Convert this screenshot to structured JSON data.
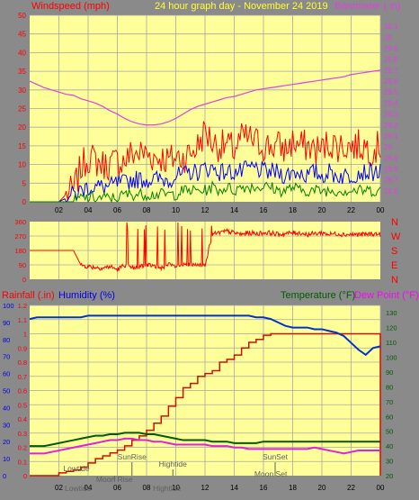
{
  "colors": {
    "background": "#8a8a8a",
    "plot_bg": "#ffff99",
    "grid": "#a6a6a6",
    "wind": "#ff0000",
    "gust": "#0000ff",
    "avg": "#008000",
    "baro": "#e040e0",
    "rain": "#cc1100",
    "humidity": "#0033cc",
    "temperature": "#005c00",
    "dewpoint": "#e020e0",
    "label_yellow": "#ffff33",
    "tide_text": "#606060"
  },
  "chart_data": [
    {
      "type": "line",
      "title": "24 hour graph day - November 24 2019",
      "ylabel_left": "Windspeed (mph)",
      "ylabel_right": "Barometer (.in)",
      "x_tick_labels": [
        "02",
        "04",
        "06",
        "08",
        "10",
        "12",
        "14",
        "16",
        "18",
        "20",
        "22",
        "00"
      ],
      "x_hour_range": [
        0,
        24
      ],
      "ylim_left": [
        0,
        50
      ],
      "y_ticks_left": [
        "0",
        "5",
        "10",
        "15",
        "20",
        "25",
        "30",
        "35",
        "40",
        "45",
        "50"
      ],
      "ylim_right": [
        28.5,
        30.2
      ],
      "y_ticks_right": [
        "28.6",
        "28.7",
        "28.8",
        "28.9",
        "29",
        "29.1",
        "29.2",
        "29.3",
        "29.4",
        "29.5",
        "29.6",
        "29.7",
        "29.8",
        "29.9",
        "30",
        "30.1"
      ],
      "grid": true,
      "series": [
        {
          "key": "wind_high",
          "values": [
            0,
            0,
            0,
            0,
            0,
            2,
            3,
            9,
            12,
            11,
            10,
            10,
            11,
            11,
            13,
            13,
            13,
            12,
            12,
            11,
            12,
            12,
            13,
            15,
            19,
            16,
            15,
            15,
            14,
            17,
            17,
            16,
            15,
            15,
            15,
            14,
            16,
            15,
            15,
            14,
            14,
            16,
            15,
            15,
            15,
            15,
            15,
            14,
            15
          ]
        },
        {
          "key": "wind_mid",
          "values": [
            0,
            0,
            0,
            0,
            0,
            1,
            2,
            3,
            4,
            4,
            4,
            4,
            5,
            5,
            6,
            6,
            6,
            6,
            6,
            6,
            7,
            7,
            8,
            8,
            9,
            9,
            8,
            8,
            8,
            8,
            9,
            9,
            8,
            8,
            8,
            7,
            8,
            8,
            7,
            8,
            7,
            8,
            7,
            7,
            7,
            8,
            8,
            8,
            8
          ]
        },
        {
          "key": "wind_low",
          "values": [
            0,
            0,
            0,
            0,
            0,
            0,
            0,
            1,
            1,
            1,
            1,
            1,
            1,
            2,
            2,
            2,
            2,
            2,
            2,
            2,
            2,
            3,
            3,
            3,
            3,
            4,
            3,
            4,
            3,
            4,
            4,
            4,
            4,
            4,
            3,
            3,
            4,
            3,
            3,
            3,
            3,
            3,
            3,
            3,
            3,
            3,
            3,
            3,
            3
          ]
        },
        {
          "key": "barometer",
          "values": [
            29.6,
            29.57,
            29.54,
            29.52,
            29.5,
            29.48,
            29.47,
            29.44,
            29.42,
            29.4,
            29.37,
            29.33,
            29.3,
            29.26,
            29.23,
            29.21,
            29.2,
            29.2,
            29.21,
            29.23,
            29.26,
            29.3,
            29.34,
            29.37,
            29.39,
            29.41,
            29.43,
            29.45,
            29.46,
            29.48,
            29.5,
            29.52,
            29.53,
            29.54,
            29.55,
            29.56,
            29.57,
            29.58,
            29.59,
            29.6,
            29.61,
            29.62,
            29.63,
            29.64,
            29.66,
            29.67,
            29.68,
            29.69,
            29.7
          ]
        }
      ]
    },
    {
      "type": "line",
      "ylabel_left_ticks": [
        "0",
        "90",
        "180",
        "270",
        "360"
      ],
      "ylabel_right_letters": [
        "N",
        "W",
        "S",
        "E",
        "N"
      ],
      "ylim": [
        0,
        360
      ],
      "x_hour_range": [
        0,
        24
      ],
      "series": [
        {
          "key": "wind_direction",
          "values": [
            180,
            180,
            180,
            180,
            180,
            180,
            180,
            90,
            80,
            75,
            70,
            80,
            60,
            90,
            70,
            80,
            90,
            80,
            75,
            90,
            80,
            85,
            90,
            85,
            90,
            280,
            290,
            300,
            290,
            280,
            290,
            285,
            290,
            290,
            280,
            285,
            290,
            290,
            280,
            285,
            290,
            280,
            285,
            280,
            280,
            280,
            280,
            285,
            280
          ]
        }
      ]
    },
    {
      "type": "line",
      "ylabel_rain": "Rainfall (.in)",
      "ylabel_humidity": "Humidity (%)",
      "ylabel_temperature": "Temperature (°F)",
      "ylabel_dewpoint": "Dew Point (°F)",
      "x_tick_labels": [
        "02",
        "04",
        "06",
        "08",
        "10",
        "12",
        "14",
        "16",
        "18",
        "20",
        "22",
        "00"
      ],
      "x_hour_range": [
        0,
        24
      ],
      "rain_ticks": [
        "0",
        "0.1",
        "0.2",
        "0.3",
        "0.4",
        "0.5",
        "0.6",
        "0.7",
        "0.8",
        "0.9",
        "1",
        "1.1",
        "1.2"
      ],
      "ylim_rain": [
        0,
        1.2
      ],
      "humidity_ticks": [
        "0",
        "10",
        "20",
        "30",
        "40",
        "50",
        "60",
        "70",
        "80",
        "90",
        "100"
      ],
      "ylim_humidity": [
        0,
        100
      ],
      "temp_ticks": [
        "20",
        "30",
        "40",
        "50",
        "60",
        "70",
        "80",
        "90",
        "100",
        "110",
        "120",
        "130"
      ],
      "ylim_temp": [
        20,
        135
      ],
      "grid": true,
      "series": [
        {
          "key": "rainfall",
          "values": [
            0,
            0,
            0,
            0,
            0.02,
            0.03,
            0.04,
            0.06,
            0.09,
            0.12,
            0.14,
            0.16,
            0.18,
            0.21,
            0.25,
            0.28,
            0.32,
            0.37,
            0.42,
            0.49,
            0.55,
            0.62,
            0.65,
            0.7,
            0.72,
            0.74,
            0.8,
            0.82,
            0.85,
            0.9,
            0.94,
            0.96,
            0.99,
            1.0,
            1.0,
            1.0,
            1.0,
            1.0,
            1.0,
            1.0,
            1.0,
            1.0,
            1.0,
            1.0,
            1.0,
            1.0,
            1.0,
            1.0,
            0
          ]
        },
        {
          "key": "humidity",
          "values": [
            92,
            93,
            93,
            93,
            93,
            93,
            93,
            93,
            94,
            94,
            94,
            94,
            94,
            94,
            94,
            94,
            94,
            94,
            94,
            94,
            94,
            94,
            94,
            94,
            94,
            94,
            94,
            94,
            94,
            94,
            94,
            93,
            93,
            92,
            90,
            88,
            87,
            87,
            87,
            86,
            86,
            85,
            84,
            82,
            78,
            74,
            71,
            75,
            76
          ]
        },
        {
          "key": "temperature",
          "values": [
            40,
            40,
            40,
            41,
            42,
            43,
            44,
            45,
            46,
            47,
            47,
            48,
            48,
            49,
            49,
            49,
            48,
            48,
            47,
            46,
            45,
            44,
            44,
            44,
            44,
            43,
            43,
            43,
            42,
            42,
            42,
            42,
            43,
            43,
            43,
            43,
            43,
            43,
            43,
            43,
            43,
            43,
            43,
            43,
            43,
            43,
            43,
            43,
            43
          ]
        },
        {
          "key": "dewpoint",
          "values": [
            35,
            35,
            35,
            36,
            37,
            38,
            39,
            40,
            41,
            42,
            43,
            44,
            44,
            45,
            45,
            44,
            44,
            43,
            43,
            42,
            41,
            41,
            41,
            41,
            41,
            40,
            40,
            40,
            39,
            39,
            38,
            38,
            38,
            38,
            38,
            38,
            38,
            38,
            38,
            39,
            38,
            37,
            36,
            35,
            36,
            37,
            37,
            37,
            37
          ]
        }
      ],
      "annotations": {
        "lowtide": {
          "text": "Lowtide",
          "hour": 3.2
        },
        "moonrise": {
          "text": "Moon Rise",
          "hour": 5.8
        },
        "sunrise": {
          "text": "SunRise",
          "hour": 7.0
        },
        "hightide": {
          "text": "Hightide",
          "hour": 9.8
        },
        "sunset": {
          "text": "SunSet",
          "hour": 16.8
        },
        "moonset": {
          "text": "Moon Set",
          "hour": 16.5
        },
        "bottom_lowtide": {
          "text": "Lowtide",
          "hour": 3.3
        },
        "bottom_hightide": {
          "text": "Hightide",
          "hour": 9.4
        }
      }
    }
  ]
}
